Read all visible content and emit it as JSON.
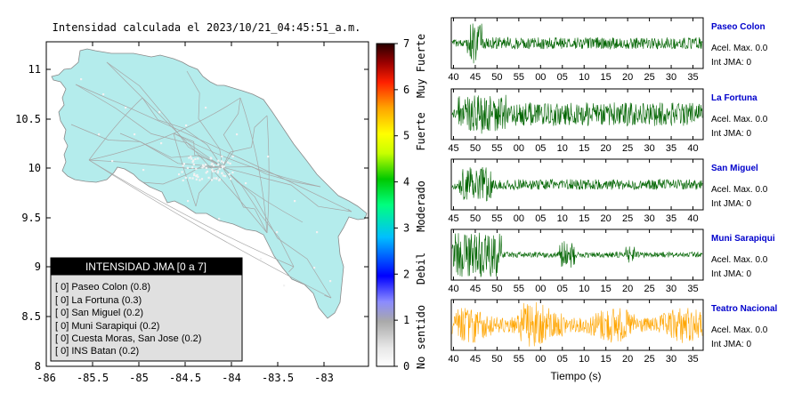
{
  "map": {
    "title": "Intensidad calculada el 2023/10/21_04:45:51_a.m.",
    "x_ticks": [
      "-86",
      "-85.5",
      "-85",
      "-84.5",
      "-84",
      "-83.5",
      "-83"
    ],
    "y_ticks": [
      "11",
      "10.5",
      "10",
      "9.5",
      "9",
      "8.5",
      "8"
    ],
    "land_color": "#b4ecec",
    "legend": {
      "header": "INTENSIDAD JMA [0 a 7]",
      "items": [
        "[ 0] Paseo Colon (0.8)",
        "[ 0] La Fortuna (0.3)",
        "[ 0] San Miguel (0.2)",
        "[ 0] Muni Sarapiqui (0.2)",
        "[ 0] Cuesta Moras, San Jose (0.2)",
        "[ 0] INS Batan (0.2)"
      ]
    }
  },
  "colorbar": {
    "ticks": [
      "0",
      "1",
      "2",
      "3",
      "4",
      "5",
      "6",
      "7"
    ],
    "labels": [
      "No sentido",
      "Debil",
      "Moderado",
      "Fuerte",
      "Muy Fuerte"
    ]
  },
  "chart_data": [
    {
      "type": "line",
      "name": "Paseo Colon",
      "color": "#006400",
      "x_ticks": [
        "40",
        "45",
        "50",
        "55",
        "00",
        "05",
        "10",
        "15",
        "20",
        "25",
        "30",
        "35"
      ],
      "accel_text": "Acel. Max. 0.0",
      "int_text": "Int JMA: 0"
    },
    {
      "type": "line",
      "name": "La Fortuna",
      "color": "#006400",
      "x_ticks": [
        "45",
        "50",
        "55",
        "00",
        "05",
        "10",
        "15",
        "20",
        "25",
        "30",
        "35",
        "40"
      ],
      "accel_text": "Acel. Max. 0.0",
      "int_text": "Int JMA: 0"
    },
    {
      "type": "line",
      "name": "San Miguel",
      "color": "#006400",
      "x_ticks": [
        "45",
        "50",
        "55",
        "00",
        "05",
        "10",
        "15",
        "20",
        "25",
        "30",
        "35",
        "40"
      ],
      "accel_text": "Acel. Max. 0.0",
      "int_text": "Int JMA: 0"
    },
    {
      "type": "line",
      "name": "Muni Sarapiqui",
      "color": "#006400",
      "x_ticks": [
        "40",
        "45",
        "50",
        "55",
        "00",
        "05",
        "10",
        "15",
        "20",
        "25",
        "30",
        "35"
      ],
      "accel_text": "Acel. Max. 0.0",
      "int_text": "Int JMA: 0"
    },
    {
      "type": "line",
      "name": "Teatro Nacional",
      "color": "#ffa500",
      "x_ticks": [
        "40",
        "45",
        "50",
        "55",
        "00",
        "05",
        "10",
        "15",
        "20",
        "25",
        "30",
        "35"
      ],
      "accel_text": "Acel. Max. 0.0",
      "int_text": "Int JMA: 0"
    }
  ],
  "xlabel": "Tiempo (s)"
}
